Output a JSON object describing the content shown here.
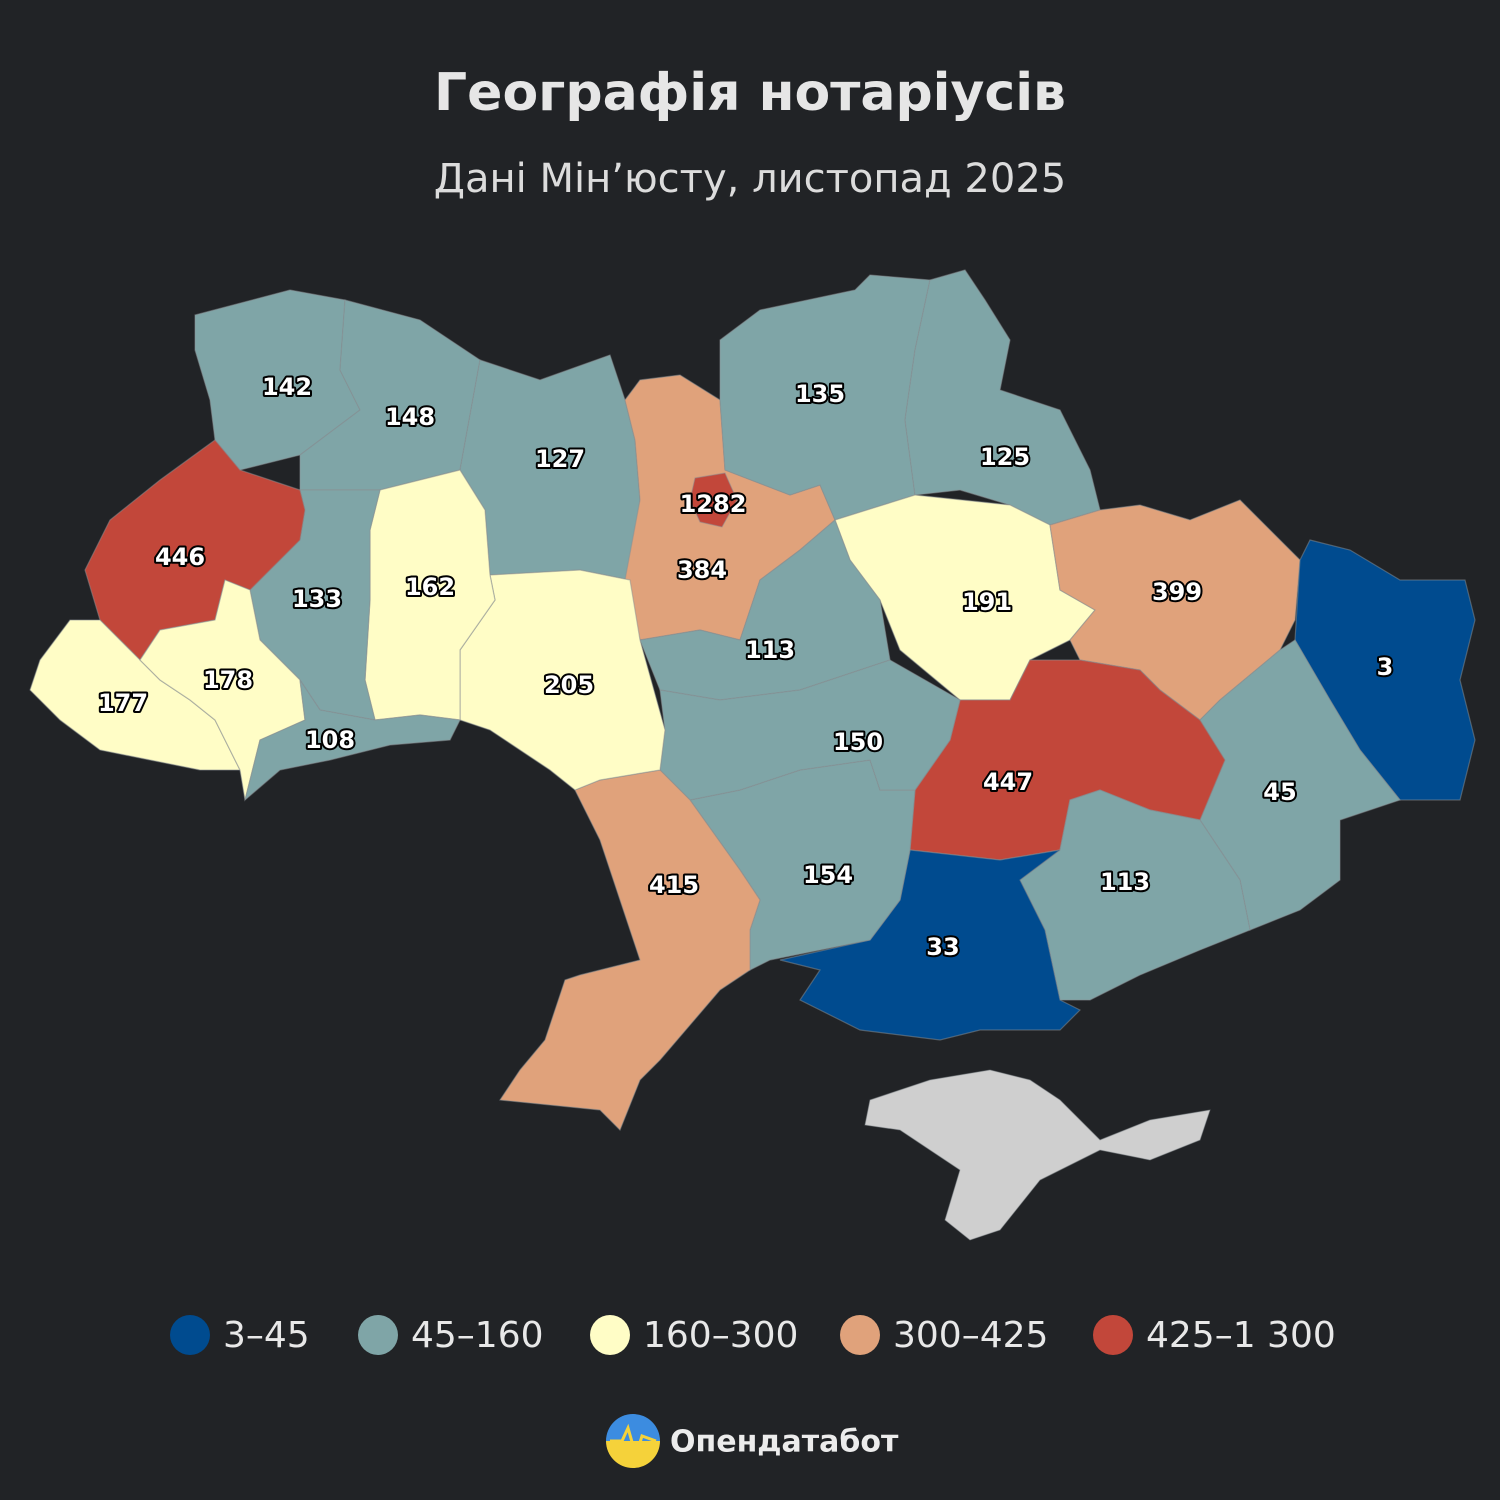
{
  "map": {
    "title": "Географія нотаріусів",
    "subtitle": "Дані Мін’юсту, листопад 2025",
    "regions": [
      {
        "value": 142,
        "color": "#7fa5a7"
      },
      {
        "value": 148,
        "color": "#7fa5a7"
      },
      {
        "value": 127,
        "color": "#7fa5a7"
      },
      {
        "value": 384,
        "color": "#e0a27b"
      },
      {
        "value": 1282,
        "color": "#c2473a"
      },
      {
        "value": 135,
        "color": "#7fa5a7"
      },
      {
        "value": 125,
        "color": "#7fa5a7"
      },
      {
        "value": 191,
        "color": "#fffdc6"
      },
      {
        "value": 399,
        "color": "#e0a27b"
      },
      {
        "value": 3,
        "color": "#004b8f"
      },
      {
        "value": 45,
        "color": "#7fa5a7"
      },
      {
        "value": 447,
        "color": "#c2473a"
      },
      {
        "value": 113,
        "color": "#7fa5a7"
      },
      {
        "value": 33,
        "color": "#004b8f"
      },
      {
        "value": 154,
        "color": "#7fa5a7"
      },
      {
        "value": 113,
        "color": "#7fa5a7"
      },
      {
        "value": 150,
        "color": "#7fa5a7"
      },
      {
        "value": 415,
        "color": "#e0a27b"
      },
      {
        "value": 205,
        "color": "#fffdc6"
      },
      {
        "value": 162,
        "color": "#fffdc6"
      },
      {
        "value": 133,
        "color": "#7fa5a7"
      },
      {
        "value": 446,
        "color": "#c2473a"
      },
      {
        "value": 177,
        "color": "#fffdc6"
      },
      {
        "value": 178,
        "color": "#fffdc6"
      },
      {
        "value": 108,
        "color": "#7fa5a7"
      }
    ],
    "legend": [
      {
        "label": "3–45",
        "color": "#004b8f"
      },
      {
        "label": "45–160",
        "color": "#7fa5a7"
      },
      {
        "label": "160–300",
        "color": "#fffdc6"
      },
      {
        "label": "300–425",
        "color": "#e0a27b"
      },
      {
        "label": "425–1 300",
        "color": "#c2473a"
      }
    ],
    "brand": "Опендатабот"
  }
}
